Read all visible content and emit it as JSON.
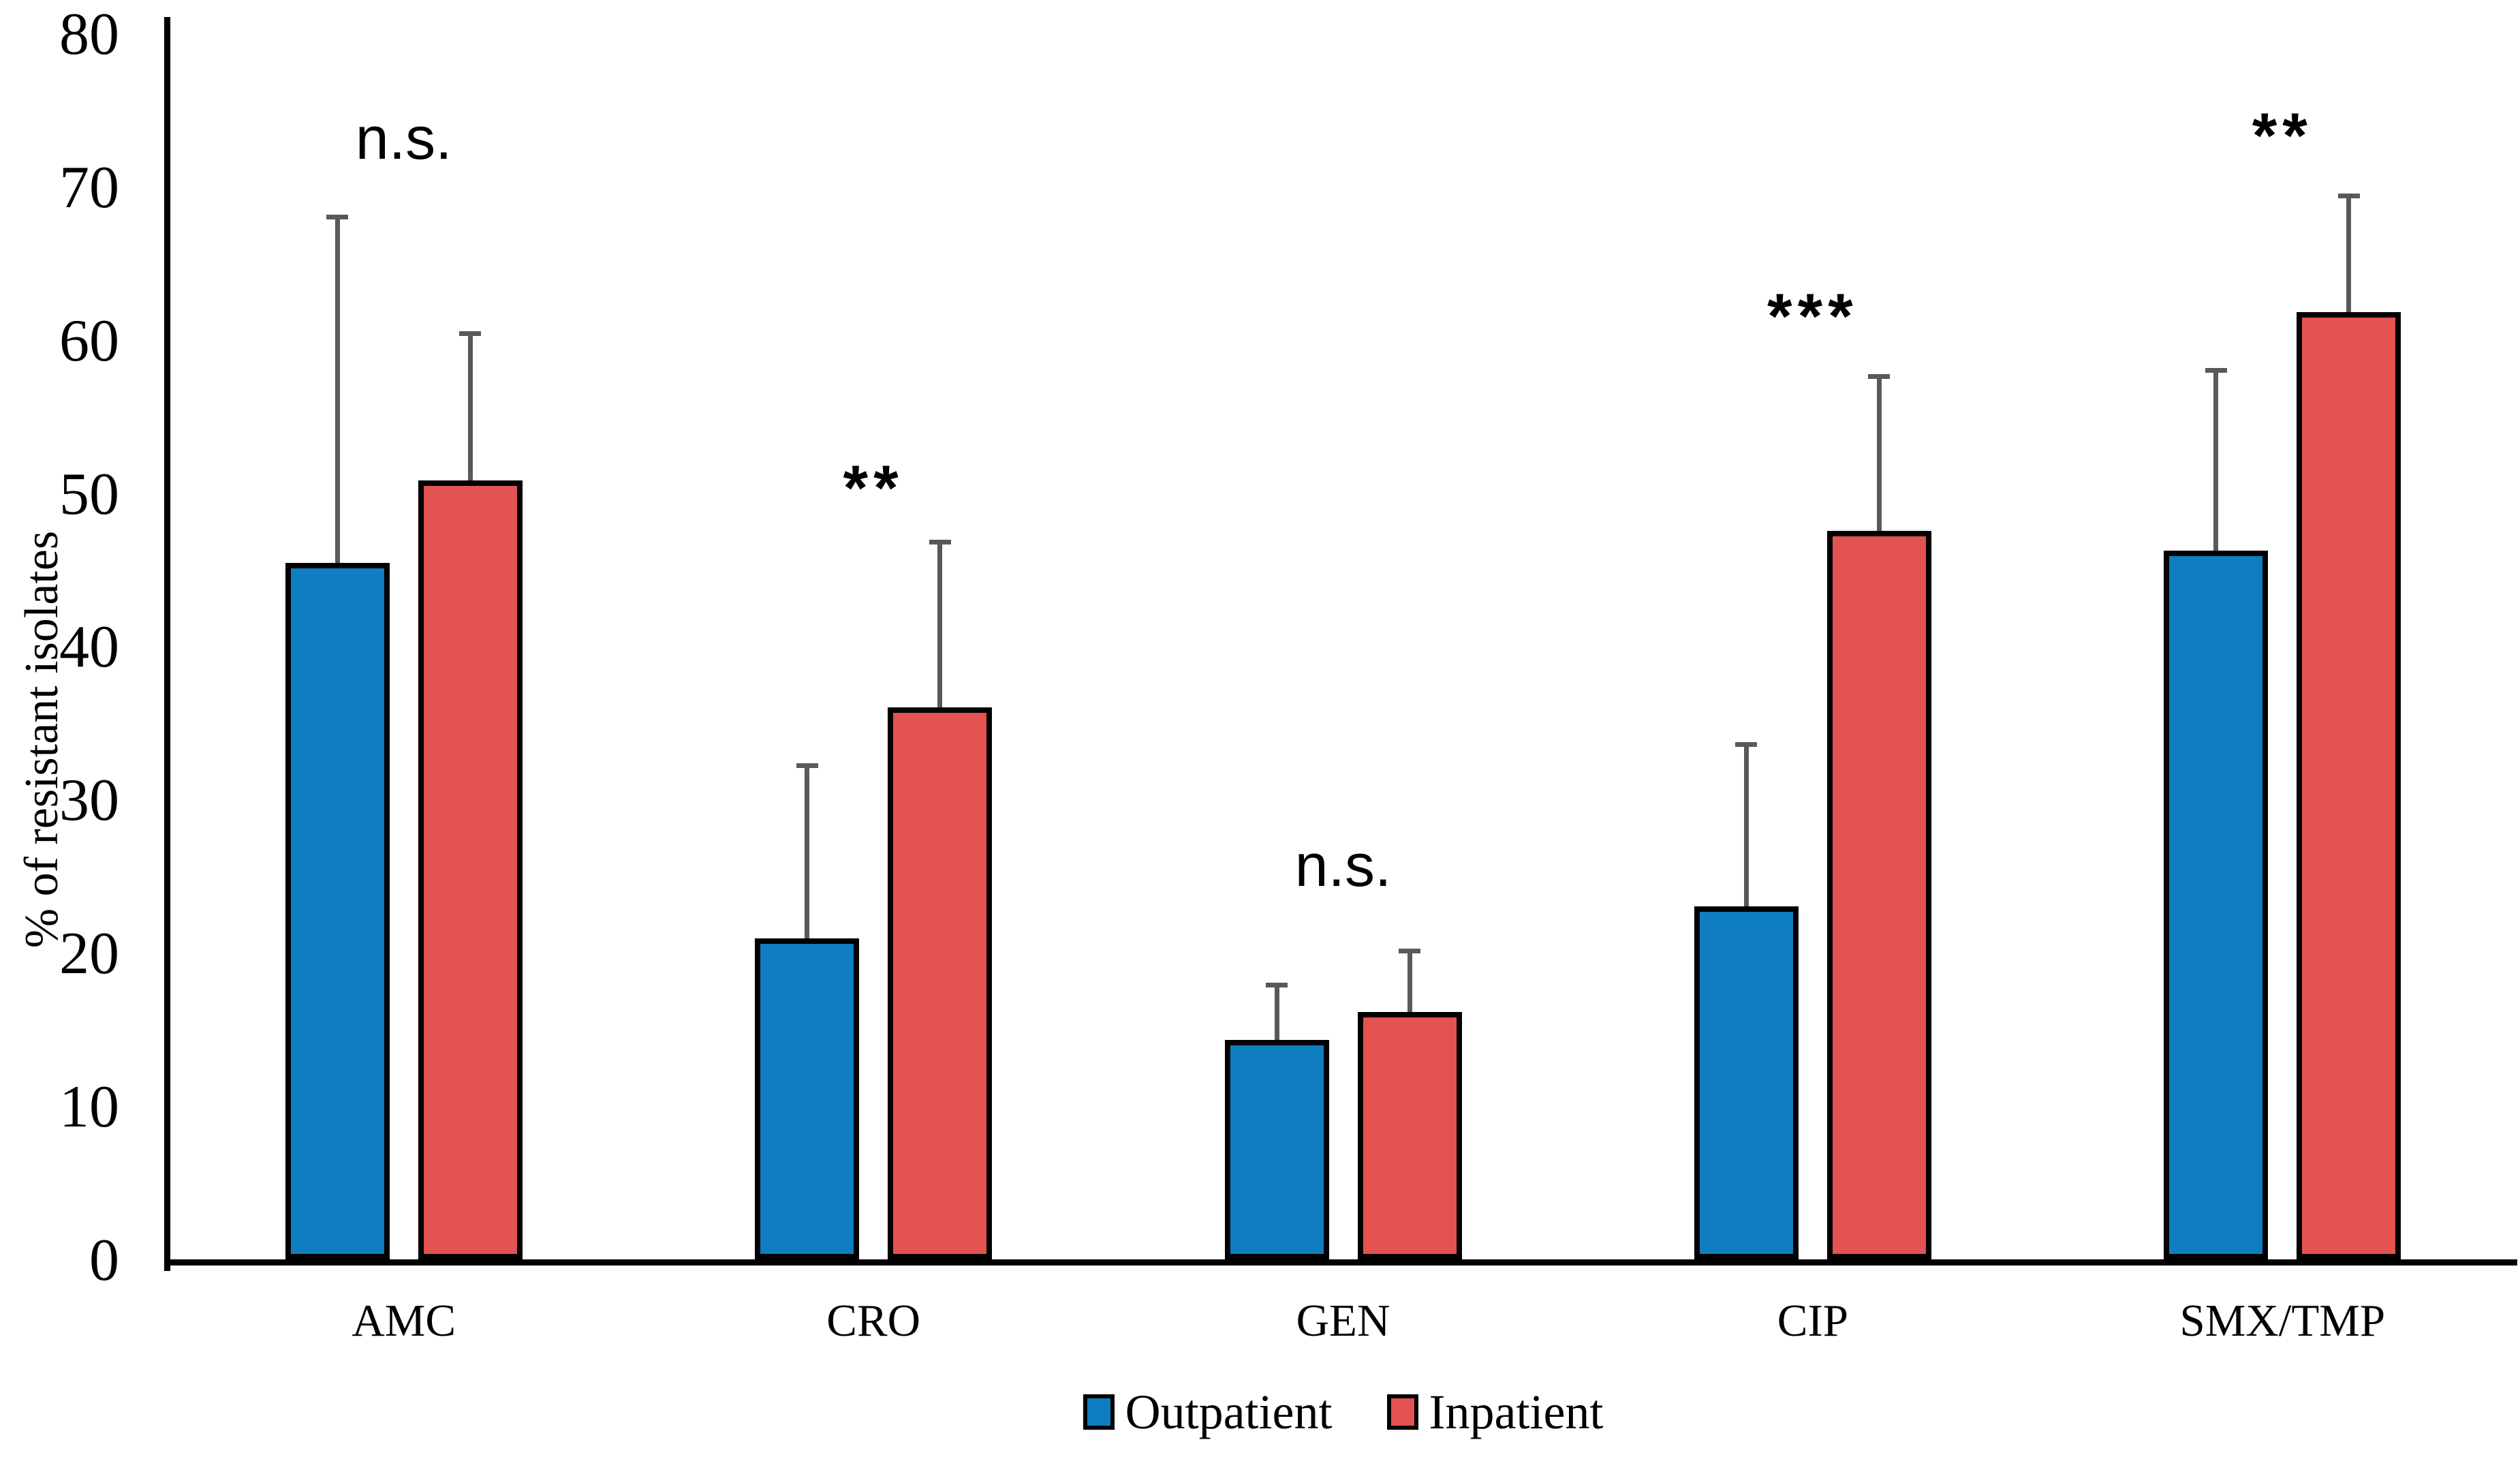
{
  "chart_data": {
    "type": "bar",
    "title": "",
    "xlabel": "",
    "ylabel": "% of resistant isolates",
    "ylim": [
      0,
      80
    ],
    "yticks": [
      0,
      10,
      20,
      30,
      40,
      50,
      60,
      70,
      80
    ],
    "grid": false,
    "legend_position": "bottom",
    "categories": [
      "AMC",
      "CRO",
      "GEN",
      "CIP",
      "SMX/TMP"
    ],
    "series": [
      {
        "name": "Outpatient",
        "color": "#0F7DC2",
        "values": [
          45.6,
          21.1,
          14.5,
          23.2,
          46.4
        ],
        "error_up": [
          22.6,
          11.3,
          3.6,
          10.6,
          11.8
        ]
      },
      {
        "name": "Inpatient",
        "color": "#E25352",
        "values": [
          51.0,
          36.2,
          16.3,
          47.7,
          62.0
        ],
        "error_up": [
          9.6,
          10.8,
          4.0,
          10.1,
          7.6
        ]
      }
    ],
    "significance": [
      {
        "category": "AMC",
        "label": "n.s.",
        "y": 73.3
      },
      {
        "category": "CRO",
        "label": "**",
        "y": 50.5
      },
      {
        "category": "GEN",
        "label": "n.s.",
        "y": 25.9
      },
      {
        "category": "CIP",
        "label": "***",
        "y": 61.7
      },
      {
        "category": "SMX/TMP",
        "label": "**",
        "y": 73.5
      }
    ],
    "bar_border_color": "#000000",
    "error_bar_color": "#595959"
  }
}
